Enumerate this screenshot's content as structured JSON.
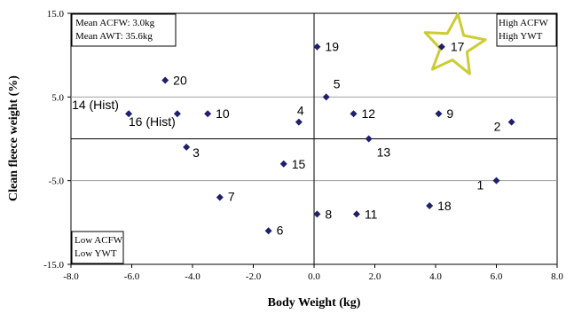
{
  "chart_data": {
    "type": "scatter",
    "xlabel": "Body Weight (kg)",
    "ylabel": "Clean fleece weight (%)",
    "xlim": [
      -8.0,
      8.0
    ],
    "ylim": [
      -15.0,
      15.0
    ],
    "x_ticks": [
      "-8.0",
      "-6.0",
      "-4.0",
      "-2.0",
      "0.0",
      "2.0",
      "4.0",
      "6.0",
      "8.0"
    ],
    "y_ticks": [
      "15.0",
      "5.0",
      "-5.0",
      "-15.0"
    ],
    "gridlines_y": [
      5.0,
      -5.0
    ],
    "reference_lines": {
      "x": 0,
      "y": 0
    },
    "marker_color": "#1f1f6b",
    "highlight_color": "#cccc33",
    "info_box": [
      "Mean ACFW: 3.0kg",
      "Mean AWT: 35.6kg"
    ],
    "quadrant_labels": {
      "top_right": [
        "High ACFW",
        "High YWT"
      ],
      "bottom_left": [
        "Low ACFW",
        "Low YWT"
      ]
    },
    "highlighted_point": "17",
    "points": [
      {
        "label": "1",
        "x": 6.0,
        "y": -5.0
      },
      {
        "label": "2",
        "x": 6.5,
        "y": 2.0
      },
      {
        "label": "3",
        "x": -4.2,
        "y": -1.0
      },
      {
        "label": "4",
        "x": -0.5,
        "y": 2.0
      },
      {
        "label": "5",
        "x": 0.4,
        "y": 5.0
      },
      {
        "label": "6",
        "x": -1.5,
        "y": -11.0
      },
      {
        "label": "7",
        "x": -3.1,
        "y": -7.0
      },
      {
        "label": "8",
        "x": 0.1,
        "y": -9.0
      },
      {
        "label": "9",
        "x": 4.1,
        "y": 3.0
      },
      {
        "label": "10",
        "x": -3.5,
        "y": 3.0
      },
      {
        "label": "11",
        "x": 1.4,
        "y": -9.0
      },
      {
        "label": "12",
        "x": 1.3,
        "y": 3.0
      },
      {
        "label": "13",
        "x": 1.8,
        "y": 0.0
      },
      {
        "label": "14 (Hist)",
        "x": -6.1,
        "y": 3.0
      },
      {
        "label": "15",
        "x": -1.0,
        "y": -3.0
      },
      {
        "label": "16 (Hist)",
        "x": -4.5,
        "y": 3.0
      },
      {
        "label": "17",
        "x": 4.2,
        "y": 11.0
      },
      {
        "label": "18",
        "x": 3.8,
        "y": -8.0
      },
      {
        "label": "19",
        "x": 0.1,
        "y": 11.0
      },
      {
        "label": "20",
        "x": -4.9,
        "y": 7.0
      }
    ]
  }
}
